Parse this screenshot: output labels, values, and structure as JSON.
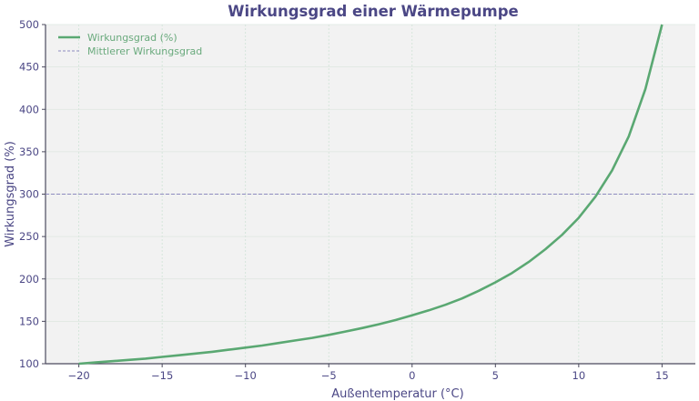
{
  "chart_data": {
    "type": "line",
    "title": "Wirkungsgrad einer Wärmepumpe",
    "xlabel": "Außentemperatur (°C)",
    "ylabel": "Wirkungsgrad (%)",
    "xlim": [
      -22,
      17
    ],
    "ylim": [
      100,
      500
    ],
    "x_ticks": [
      -20,
      -15,
      -10,
      -5,
      0,
      5,
      10,
      15
    ],
    "x_tick_labels": [
      "−20",
      "−15",
      "−10",
      "−5",
      "0",
      "5",
      "10",
      "15"
    ],
    "y_ticks": [
      100,
      150,
      200,
      250,
      300,
      350,
      400,
      450,
      500
    ],
    "y_tick_labels": [
      "100",
      "150",
      "200",
      "250",
      "300",
      "350",
      "400",
      "450",
      "500"
    ],
    "grid": true,
    "legend_position": "upper left",
    "series": [
      {
        "name": "Wirkungsgrad (%)",
        "color": "#5aa872",
        "style": "solid",
        "x": [
          -20,
          -19,
          -18,
          -17,
          -16,
          -15,
          -14,
          -13,
          -12,
          -11,
          -10,
          -9,
          -8,
          -7,
          -6,
          -5,
          -4,
          -3,
          -2,
          -1,
          0,
          1,
          2,
          3,
          4,
          5,
          6,
          7,
          8,
          9,
          10,
          11,
          12,
          13,
          14,
          15
        ],
        "values": [
          100,
          101.5,
          103,
          104.5,
          106,
          108,
          110,
          112,
          114,
          116.5,
          119,
          121.5,
          124.5,
          127.5,
          130.5,
          134,
          138,
          142,
          146.5,
          151.5,
          157,
          163,
          169.5,
          177,
          186,
          196,
          207,
          220,
          235,
          252,
          272,
          297,
          328,
          368,
          424,
          500
        ]
      },
      {
        "name": "Mittlerer Wirkungsgrad",
        "color": "#8f8cc0",
        "style": "dashed",
        "type": "hline",
        "value": 300
      }
    ]
  }
}
